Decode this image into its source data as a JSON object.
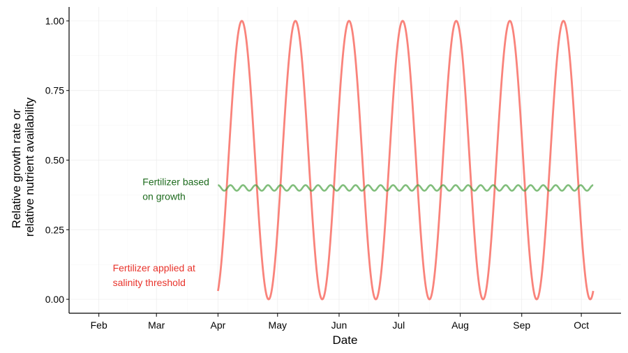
{
  "chart_data": {
    "type": "line",
    "title": "",
    "xlabel": "Date",
    "ylabel_lines": [
      "Relative growth rate or",
      "relative nutrient availability"
    ],
    "x_ticks": [
      "Feb",
      "Mar",
      "Apr",
      "May",
      "Jun",
      "Jul",
      "Aug",
      "Sep",
      "Oct"
    ],
    "x_tick_dates": [
      "2000-02-01",
      "2000-03-01",
      "2000-04-01",
      "2000-05-01",
      "2000-06-01",
      "2000-07-01",
      "2000-08-01",
      "2000-09-01",
      "2000-10-01"
    ],
    "xlim": [
      "2000-01-17",
      "2000-10-21"
    ],
    "y_ticks": [
      "0.00",
      "0.25",
      "0.50",
      "0.75",
      "1.00"
    ],
    "y_tick_values": [
      0,
      0.25,
      0.5,
      0.75,
      1.0
    ],
    "ylim": [
      -0.05,
      1.05
    ],
    "grid": true,
    "legend": "none",
    "series": [
      {
        "color": "#f8766d",
        "date_range": [
          "2000-04-01",
          "2000-10-07"
        ],
        "x_sampled": [
          "2000-04-01",
          "2000-04-11",
          "2000-04-19",
          "2000-04-26",
          "2000-05-11",
          "2000-05-19",
          "2000-05-25",
          "2000-06-11",
          "2000-06-18",
          "2000-06-25",
          "2000-07-11",
          "2000-07-18",
          "2000-07-26",
          "2000-08-10",
          "2000-08-17",
          "2000-08-25",
          "2000-09-10",
          "2000-09-17",
          "2000-09-24",
          "2000-10-07"
        ],
        "y_sampled": [
          0.03,
          1.0,
          0.5,
          0.0,
          1.0,
          0.5,
          0.0,
          1.0,
          0.5,
          0.0,
          1.0,
          0.5,
          0.0,
          1.0,
          0.5,
          0.0,
          1.0,
          0.5,
          0.0,
          1.0
        ],
        "cycles": 7.0
      },
      {
        "color": "#3d9b35",
        "date_range": [
          "2000-04-01",
          "2000-10-07"
        ],
        "mean": 0.4,
        "amplitude": 0.01,
        "cycles": 30
      }
    ],
    "annotations": [
      {
        "lines": [
          "Fertilizer based",
          "on growth"
        ],
        "color": "#1e6b1e",
        "x": "2000-02-23",
        "y": 0.41
      },
      {
        "lines": [
          "Fertilizer applied at",
          "salinity threshold"
        ],
        "color": "#e8332b",
        "x": "2000-02-08",
        "y": 0.1
      }
    ]
  }
}
